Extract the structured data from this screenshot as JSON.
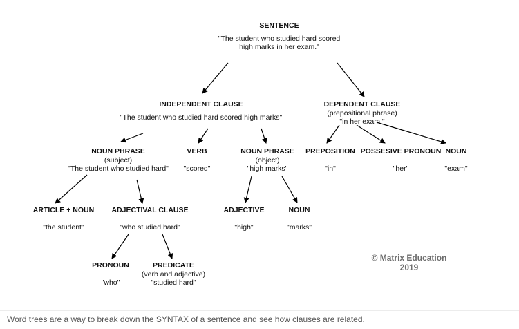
{
  "tree": {
    "sentence": {
      "title": "SENTENCE",
      "quote_line1": "\"The student who studied hard scored",
      "quote_line2": "high marks in her exam.\""
    },
    "independent_clause": {
      "title": "INDEPENDENT CLAUSE",
      "quote": "\"The student who studied hard scored high marks\""
    },
    "dependent_clause": {
      "title": "DEPENDENT CLAUSE",
      "sub": "(prepositional phrase)",
      "quote": "\"in her exam.\""
    },
    "noun_phrase_subject": {
      "title": "NOUN PHRASE",
      "sub": "(subject)",
      "quote": "\"The student who studied hard\""
    },
    "verb": {
      "title": "VERB",
      "quote": "\"scored\""
    },
    "noun_phrase_object": {
      "title": "NOUN PHRASE",
      "sub": "(object)",
      "quote": "\"high marks\""
    },
    "preposition": {
      "title": "PREPOSITION",
      "quote": "\"in\""
    },
    "possessive_pronoun": {
      "title": "POSSESIVE PRONOUN",
      "quote": "\"her\""
    },
    "noun_exam": {
      "title": "NOUN",
      "quote": "\"exam\""
    },
    "article_noun": {
      "title": "ARTICLE + NOUN",
      "quote": "\"the student\""
    },
    "adjectival_clause": {
      "title": "ADJECTIVAL CLAUSE",
      "quote": "\"who studied hard\""
    },
    "adjective": {
      "title": "ADJECTIVE",
      "quote": "\"high\""
    },
    "noun_marks": {
      "title": "NOUN",
      "quote": "\"marks\""
    },
    "pronoun": {
      "title": "PRONOUN",
      "quote": "\"who\""
    },
    "predicate": {
      "title": "PREDICATE",
      "sub": "(verb and adjective)",
      "quote": "\"studied hard\""
    }
  },
  "watermark": {
    "line1": "© Matrix Education",
    "line2": "2019"
  },
  "caption": "Word trees are a way to break down the SYNTAX of a sentence and see how clauses are related."
}
